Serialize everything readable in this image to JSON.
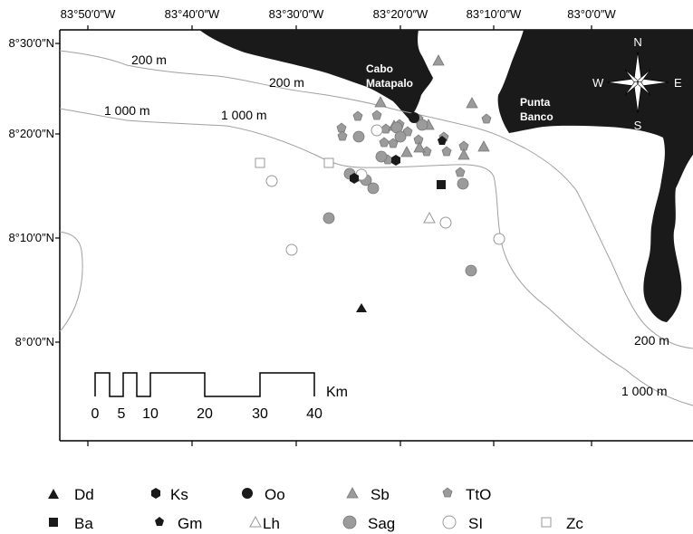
{
  "axes": {
    "longitude_labels": [
      "83°50′0″W",
      "83°40′0″W",
      "83°30′0″W",
      "83°20′0″W",
      "83°10′0″W",
      "83°0′0″W"
    ],
    "latitude_labels": [
      "8°30′0″N",
      "8°20′0″N",
      "8°10′0″N",
      "8°0′0″N"
    ]
  },
  "places": {
    "cabo_line1": "Cabo",
    "cabo_line2": "Matapalo",
    "punta_line1": "Punta",
    "punta_line2": "Banco"
  },
  "isobaths": {
    "label_200": "200 m",
    "label_1000": "1 000 m"
  },
  "compass": {
    "n": "N",
    "s": "S",
    "e": "E",
    "w": "W"
  },
  "scale_bar": {
    "unit": "Km",
    "ticks": [
      "0",
      "5",
      "10",
      "20",
      "30",
      "40"
    ]
  },
  "legend": [
    {
      "code": "Dd",
      "symbol": "triangle-filled-black"
    },
    {
      "code": "Ks",
      "symbol": "hexagon-filled-black"
    },
    {
      "code": "Oo",
      "symbol": "circle-filled-black"
    },
    {
      "code": "Sb",
      "symbol": "triangle-filled-gray"
    },
    {
      "code": "TtO",
      "symbol": "pentagon-filled-gray"
    },
    {
      "code": "Ba",
      "symbol": "square-filled-black"
    },
    {
      "code": "Gm",
      "symbol": "pentagon-filled-black"
    },
    {
      "code": "Lh",
      "symbol": "triangle-open"
    },
    {
      "code": "Sag",
      "symbol": "circle-filled-gray"
    },
    {
      "code": "SI",
      "symbol": "circle-open"
    },
    {
      "code": "Zc",
      "symbol": "square-open"
    }
  ],
  "colors": {
    "land": "#1a1a1a",
    "isobath": "#a0a0a0",
    "gray_marker": "#9b9b9b",
    "black_marker": "#1a1a1a",
    "open_marker": "#ffffff"
  }
}
